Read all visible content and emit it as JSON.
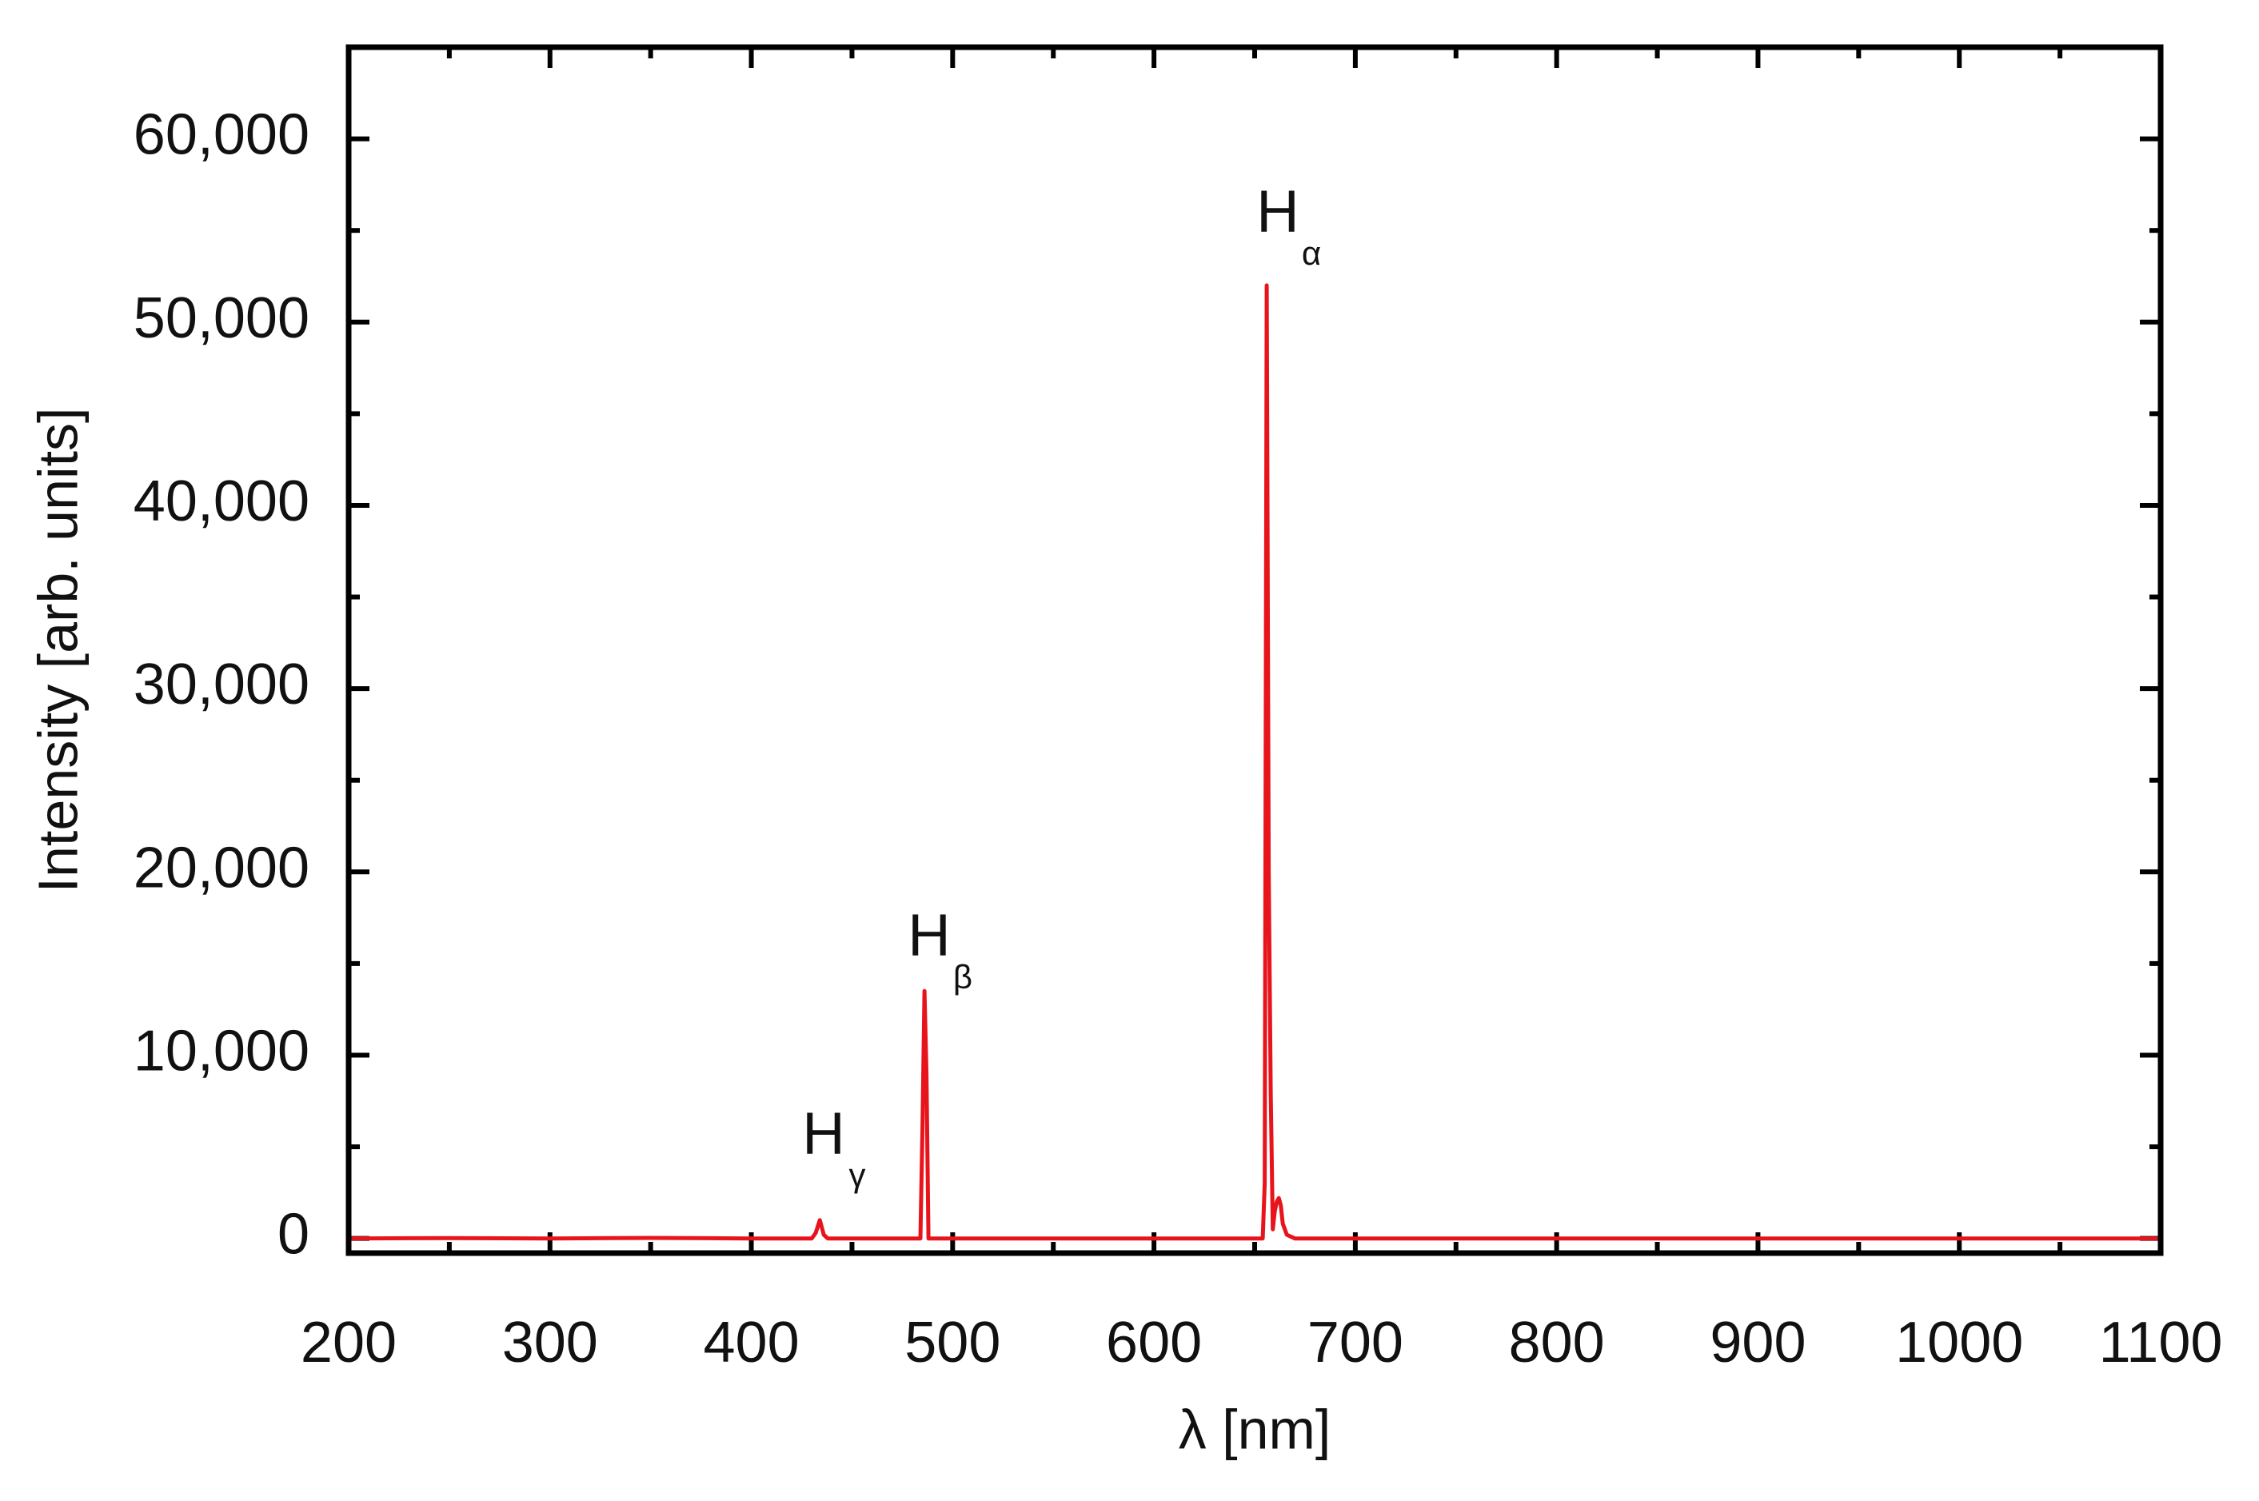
{
  "chart_data": {
    "type": "line",
    "x_label": "λ [nm]",
    "y_label": "Intensity [arb. units]",
    "x": [
      200,
      250,
      300,
      350,
      400,
      430,
      432,
      434,
      436,
      438,
      480,
      484,
      485,
      486,
      487,
      488,
      490,
      550,
      600,
      650,
      654,
      655,
      656,
      657,
      658,
      659,
      660,
      661,
      662,
      663,
      664,
      666,
      670,
      700,
      800,
      900,
      1000,
      1100
    ],
    "series": [
      {
        "color": "#e8141c",
        "values": [
          0,
          20,
          0,
          30,
          0,
          0,
          300,
          1000,
          200,
          0,
          0,
          0,
          6000,
          13500,
          9000,
          0,
          0,
          0,
          0,
          0,
          0,
          3000,
          52000,
          20000,
          8000,
          500,
          1500,
          2000,
          2200,
          1800,
          800,
          200,
          0,
          0,
          0,
          0,
          0,
          0
        ]
      }
    ],
    "xlim": [
      200,
      1100
    ],
    "xticks": [
      200,
      300,
      400,
      500,
      600,
      700,
      800,
      900,
      1000,
      1100
    ],
    "xminorticks": [
      250,
      350,
      450,
      550,
      650,
      750,
      850,
      950,
      1050
    ],
    "ylim": [
      -800,
      65000
    ],
    "yticks": [
      0,
      {
        "value": 10000,
        "label": "10,000"
      },
      {
        "value": 20000,
        "label": "20,000"
      },
      {
        "value": 30000,
        "label": "30,000"
      },
      {
        "value": 40000,
        "label": "40,000"
      },
      {
        "value": 50000,
        "label": "50,000"
      },
      {
        "value": 60000,
        "label": "60,000"
      }
    ],
    "yminorticks": [
      5000,
      15000,
      25000,
      35000,
      45000,
      55000
    ],
    "annotations": [
      {
        "text": "H",
        "sub": "α"
      },
      {
        "text": "H",
        "sub": "β"
      },
      {
        "text": "H",
        "sub": "γ"
      }
    ]
  }
}
